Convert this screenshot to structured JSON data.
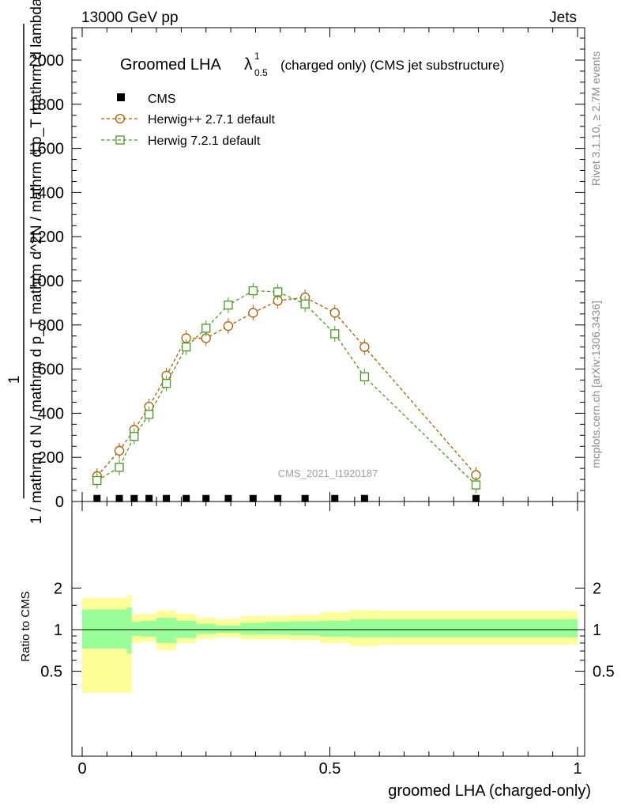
{
  "header": {
    "left": "13000 GeV pp",
    "right": "Jets"
  },
  "side_labels": {
    "top": "Rivet 3.1.10, ≥ 2.7M events",
    "bottom": "mcplots.cern.ch [arXiv:1306.3436]"
  },
  "watermark": "CMS_2021_I1920187",
  "chart_data": [
    {
      "type": "line",
      "title": "Groomed LHA",
      "title_symbol": "λ",
      "title_sup": "1",
      "title_sub": "0.5",
      "title_suffix": "(charged only) (CMS jet substructure)",
      "ylabel": "1 / mathrm d N / mathrm d p_T mathrm d^2N / mathrm d p_T mathrm d lambda",
      "ylim": [
        0,
        2150
      ],
      "xlim": [
        -0.02,
        1.0
      ],
      "y_ticks": [
        "0",
        "200",
        "400",
        "600",
        "800",
        "1000",
        "1200",
        "1400",
        "1600",
        "1800",
        "2000"
      ],
      "legend_position": "top-left",
      "series": [
        {
          "name": "CMS",
          "color": "#000000",
          "marker": "square-filled",
          "x": [
            0.03,
            0.075,
            0.105,
            0.135,
            0.17,
            0.21,
            0.25,
            0.295,
            0.345,
            0.395,
            0.45,
            0.51,
            0.57,
            0.795
          ],
          "y": [
            1,
            1,
            1,
            1,
            1,
            1,
            1,
            1,
            1,
            1,
            1,
            1,
            1,
            1
          ]
        },
        {
          "name": "Herwig++ 2.7.1 default",
          "color": "#b35a00",
          "marker": "circle-open",
          "x": [
            0.03,
            0.075,
            0.105,
            0.135,
            0.17,
            0.21,
            0.25,
            0.295,
            0.345,
            0.395,
            0.45,
            0.51,
            0.57,
            0.795
          ],
          "y": [
            115,
            230,
            325,
            430,
            570,
            740,
            740,
            795,
            855,
            910,
            925,
            855,
            700,
            120
          ]
        },
        {
          "name": "Herwig 7.2.1 default",
          "color": "#4a9a20",
          "marker": "square-open",
          "x": [
            0.03,
            0.075,
            0.105,
            0.135,
            0.17,
            0.21,
            0.25,
            0.295,
            0.345,
            0.395,
            0.45,
            0.51,
            0.57,
            0.795
          ],
          "y": [
            95,
            155,
            295,
            395,
            535,
            700,
            785,
            890,
            955,
            950,
            895,
            760,
            565,
            75
          ]
        }
      ]
    },
    {
      "type": "area",
      "ylabel": "Ratio to CMS",
      "xlabel": "groomed LHA (charged-only)",
      "ylim": [
        0.35,
        2.3
      ],
      "y_scale": "log",
      "x_ticks": [
        "0",
        "0.5",
        "1"
      ],
      "y_ticks": [
        "0.5",
        "1",
        "2"
      ],
      "reference_line": 1,
      "bins": [
        0.0,
        0.09,
        0.1,
        0.12,
        0.15,
        0.19,
        0.23,
        0.27,
        0.32,
        0.37,
        0.42,
        0.48,
        0.54,
        0.6,
        1.0
      ],
      "band_yellow": {
        "lo": [
          0.35,
          0.35,
          0.8,
          0.82,
          0.71,
          0.8,
          0.86,
          0.88,
          0.85,
          0.85,
          0.84,
          0.8,
          0.76,
          0.78
        ],
        "hi": [
          1.69,
          1.78,
          1.29,
          1.3,
          1.38,
          1.3,
          1.22,
          1.19,
          1.25,
          1.26,
          1.27,
          1.34,
          1.38,
          1.37
        ]
      },
      "band_green": {
        "lo": [
          0.73,
          0.67,
          0.9,
          0.89,
          0.8,
          0.87,
          0.93,
          0.95,
          0.92,
          0.92,
          0.91,
          0.89,
          0.88,
          0.88
        ],
        "hi": [
          1.4,
          1.45,
          1.14,
          1.16,
          1.22,
          1.16,
          1.1,
          1.07,
          1.12,
          1.14,
          1.15,
          1.16,
          1.19,
          1.19
        ]
      },
      "colors": {
        "yellow": "#ffff99",
        "green": "#99ff99"
      }
    }
  ]
}
